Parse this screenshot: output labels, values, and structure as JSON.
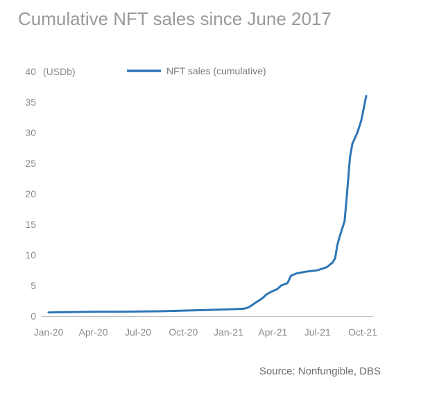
{
  "title": "Cumulative NFT sales since June 2017",
  "source": "Source: Nonfungible, DBS",
  "colors": {
    "series": "#2e75b6",
    "axis": "#bfbfbf",
    "text": "#8a8a8a",
    "title": "#9a9a9a"
  },
  "chart_data": {
    "type": "line",
    "title": "Cumulative NFT sales since June 2017",
    "ylabel": "(USDb)",
    "xlabel": "",
    "ylim": [
      0,
      40
    ],
    "yticks": [
      0,
      5,
      10,
      15,
      20,
      25,
      30,
      35,
      40
    ],
    "xticks": [
      "Jan-20",
      "Apr-20",
      "Jul-20",
      "Oct-20",
      "Jan-21",
      "Apr-21",
      "Jul-21",
      "Oct-21"
    ],
    "grid": false,
    "legend": "top",
    "series": [
      {
        "name": "NFT sales (cumulative)",
        "points": [
          [
            "2020-01-01",
            0.6
          ],
          [
            "2020-02-15",
            0.65
          ],
          [
            "2020-04-01",
            0.7
          ],
          [
            "2020-05-15",
            0.72
          ],
          [
            "2020-07-01",
            0.75
          ],
          [
            "2020-08-15",
            0.8
          ],
          [
            "2020-10-01",
            0.9
          ],
          [
            "2020-11-15",
            1.0
          ],
          [
            "2021-01-01",
            1.1
          ],
          [
            "2021-01-15",
            1.15
          ],
          [
            "2021-02-01",
            1.2
          ],
          [
            "2021-02-10",
            1.4
          ],
          [
            "2021-02-18",
            1.8
          ],
          [
            "2021-02-25",
            2.2
          ],
          [
            "2021-03-05",
            2.6
          ],
          [
            "2021-03-12",
            3.0
          ],
          [
            "2021-03-20",
            3.6
          ],
          [
            "2021-04-01",
            4.1
          ],
          [
            "2021-04-10",
            4.4
          ],
          [
            "2021-04-18",
            5.0
          ],
          [
            "2021-05-01",
            5.4
          ],
          [
            "2021-05-08",
            6.6
          ],
          [
            "2021-05-20",
            7.0
          ],
          [
            "2021-06-10",
            7.3
          ],
          [
            "2021-07-01",
            7.5
          ],
          [
            "2021-07-20",
            8.0
          ],
          [
            "2021-08-01",
            8.8
          ],
          [
            "2021-08-06",
            9.5
          ],
          [
            "2021-08-10",
            11.5
          ],
          [
            "2021-08-15",
            13.0
          ],
          [
            "2021-08-25",
            15.5
          ],
          [
            "2021-08-30",
            20.0
          ],
          [
            "2021-09-05",
            26.0
          ],
          [
            "2021-09-10",
            28.2
          ],
          [
            "2021-09-20",
            30.0
          ],
          [
            "2021-09-28",
            32.0
          ],
          [
            "2021-10-08",
            36.0
          ]
        ]
      }
    ]
  }
}
